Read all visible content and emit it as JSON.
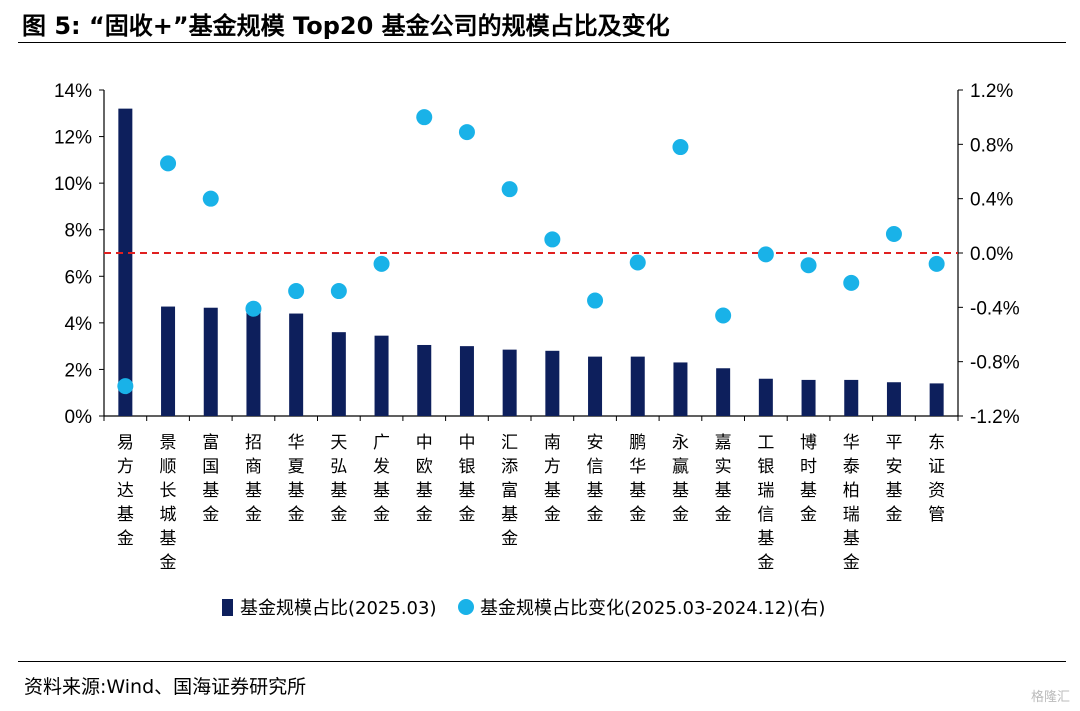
{
  "figure": {
    "title": "图 5:  “固收+”基金规模 Top20 基金公司的规模占比及变化",
    "source": "资料来源:Wind、国海证券研究所",
    "watermark": "格隆汇"
  },
  "colors": {
    "bar": "#0d1f5c",
    "dot": "#19b2e8",
    "zero_line": "#e02020",
    "axis": "#000000"
  },
  "chart_data": {
    "type": "bar",
    "categories": [
      "易方达基金",
      "景顺长城基金",
      "富国基金",
      "招商基金",
      "华夏基金",
      "天弘基金",
      "广发基金",
      "中欧基金",
      "中银基金",
      "汇添富基金",
      "南方基金",
      "安信基金",
      "鹏华基金",
      "永赢基金",
      "嘉实基金",
      "工银瑞信基金",
      "博时基金",
      "华泰柏瑞基金",
      "平安基金",
      "东证资管"
    ],
    "series": [
      {
        "name": "基金规模占比(2025.03)",
        "type": "bar",
        "axis": "left",
        "values": [
          13.2,
          4.7,
          4.65,
          4.5,
          4.4,
          3.6,
          3.45,
          3.05,
          3.0,
          2.85,
          2.8,
          2.55,
          2.55,
          2.3,
          2.05,
          1.6,
          1.55,
          1.55,
          1.45,
          1.4
        ]
      },
      {
        "name": "基金规模占比变化(2025.03-2024.12)(右)",
        "type": "scatter",
        "axis": "right",
        "values": [
          -0.98,
          0.66,
          0.4,
          -0.41,
          -0.28,
          -0.28,
          -0.08,
          1.0,
          0.89,
          0.47,
          0.1,
          -0.35,
          -0.07,
          0.78,
          -0.46,
          -0.01,
          -0.09,
          -0.22,
          0.14,
          -0.08
        ]
      }
    ],
    "y_left": {
      "ylim": [
        0,
        14
      ],
      "ticks": [
        0,
        2,
        4,
        6,
        8,
        10,
        12,
        14
      ],
      "tick_labels": [
        "0%",
        "2%",
        "4%",
        "6%",
        "8%",
        "10%",
        "12%",
        "14%"
      ]
    },
    "y_right": {
      "ylim": [
        -1.2,
        1.2
      ],
      "ticks": [
        -1.2,
        -0.8,
        -0.4,
        0.0,
        0.4,
        0.8,
        1.2
      ],
      "tick_labels": [
        "-1.2%",
        "-0.8%",
        "-0.4%",
        "0.0%",
        "0.4%",
        "0.8%",
        "1.2%"
      ]
    },
    "reference_line": {
      "axis": "right",
      "value": 0.0,
      "style": "dashed"
    },
    "legend_position": "bottom",
    "grid": false
  }
}
